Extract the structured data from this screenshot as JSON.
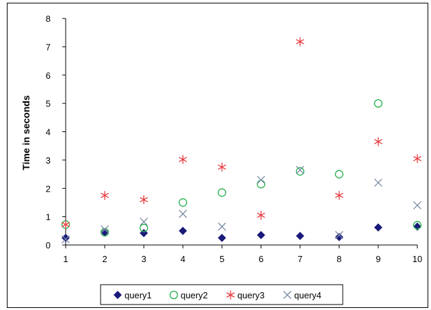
{
  "chart_data": {
    "type": "scatter",
    "title": "",
    "xlabel": "",
    "ylabel": "Time in seconds",
    "x": [
      1,
      2,
      3,
      4,
      5,
      6,
      7,
      8,
      9,
      10
    ],
    "xlim": [
      1,
      10
    ],
    "ylim": [
      0,
      8
    ],
    "yticks": [
      0,
      1,
      2,
      3,
      4,
      5,
      6,
      7,
      8
    ],
    "xticks": [
      1,
      2,
      3,
      4,
      5,
      6,
      7,
      8,
      9,
      10
    ],
    "grid": false,
    "legend_position": "bottom",
    "series": [
      {
        "name": "query1",
        "marker": "diamond",
        "color": "#1a1a7a",
        "values": [
          0.25,
          0.45,
          0.42,
          0.5,
          0.25,
          0.35,
          0.32,
          0.28,
          0.62,
          0.65
        ]
      },
      {
        "name": "query2",
        "marker": "circle",
        "color": "#22b14c",
        "values": [
          0.72,
          0.45,
          0.6,
          1.5,
          1.85,
          2.15,
          2.6,
          2.5,
          5.0,
          0.7
        ]
      },
      {
        "name": "query3",
        "marker": "star",
        "color": "#e8383d",
        "values": [
          0.72,
          1.75,
          1.6,
          3.02,
          2.75,
          1.05,
          7.18,
          1.75,
          3.65,
          3.05
        ]
      },
      {
        "name": "query4",
        "marker": "x",
        "color": "#7a8aa6",
        "values": [
          0.2,
          0.55,
          0.82,
          1.1,
          0.65,
          2.3,
          2.65,
          0.35,
          2.2,
          1.4
        ]
      }
    ]
  }
}
